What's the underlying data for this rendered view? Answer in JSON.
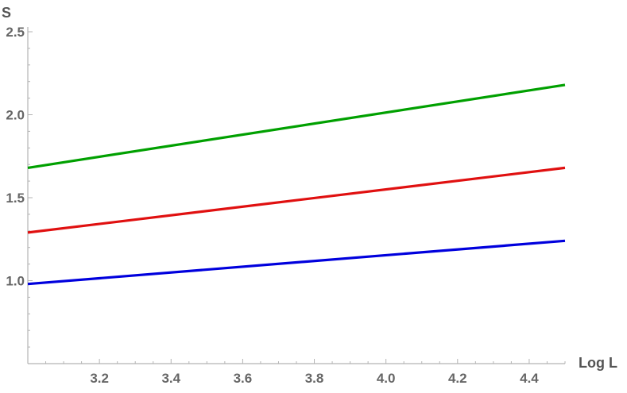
{
  "chart_data": {
    "type": "line",
    "title": "",
    "xlabel": "Log L",
    "ylabel": "S",
    "xlim": [
      3.0,
      4.5
    ],
    "ylim": [
      0.5,
      2.5
    ],
    "x_ticks": [
      3.2,
      3.4,
      3.6,
      3.8,
      4.0,
      4.2,
      4.4
    ],
    "x_tick_labels": [
      "3.2",
      "3.4",
      "3.6",
      "3.8",
      "4.0",
      "4.2",
      "4.4"
    ],
    "y_ticks": [
      1.0,
      1.5,
      2.0,
      2.5
    ],
    "y_tick_labels": [
      "1.0",
      "1.5",
      "2.0",
      "2.5"
    ],
    "grid": false,
    "legend": "none",
    "series": [
      {
        "color": "#00a000",
        "x": [
          3.0,
          4.5
        ],
        "y": [
          1.68,
          2.18
        ]
      },
      {
        "color": "#e01010",
        "x": [
          3.0,
          4.5
        ],
        "y": [
          1.29,
          1.68
        ]
      },
      {
        "color": "#0000dd",
        "x": [
          3.0,
          4.5
        ],
        "y": [
          0.98,
          1.24
        ]
      }
    ]
  }
}
